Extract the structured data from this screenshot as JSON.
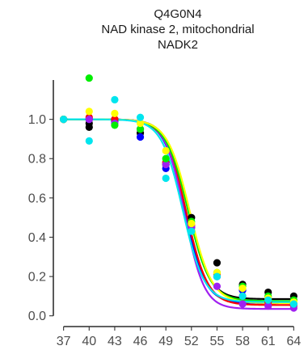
{
  "chart_data": {
    "type": "scatter",
    "title_lines": [
      "Q4G0N4",
      "NAD kinase 2, mitochondrial",
      "NADK2"
    ],
    "xlabel": "",
    "ylabel": "",
    "x_ticks": [
      37,
      40,
      43,
      46,
      49,
      52,
      55,
      58,
      61,
      64
    ],
    "y_ticks": [
      0.0,
      0.2,
      0.4,
      0.6,
      0.8,
      1.0
    ],
    "y_tick_labels": [
      "0.0",
      "0.2",
      "0.4",
      "0.6",
      "0.8",
      "1.0"
    ],
    "xlim": [
      35.8,
      65.2
    ],
    "ylim": [
      -0.03,
      1.27
    ],
    "grid": false,
    "legend": "none",
    "series": [
      {
        "color": "#000000",
        "x": [
          37,
          40,
          40,
          43,
          46,
          49,
          52,
          55,
          58,
          61,
          64
        ],
        "y": [
          1.0,
          0.96,
          0.98,
          1.0,
          0.93,
          0.77,
          0.5,
          0.27,
          0.16,
          0.12,
          0.1
        ],
        "fit": {
          "top": 1.0,
          "bottom": 0.085,
          "tm": 51.6,
          "slope": 1.25
        }
      },
      {
        "color": "#0000FF",
        "x": [
          37,
          40,
          43,
          46,
          49,
          52,
          55,
          58,
          61,
          64
        ],
        "y": [
          1.0,
          1.0,
          0.99,
          0.91,
          0.75,
          0.45,
          0.2,
          0.13,
          0.09,
          0.06
        ],
        "fit": {
          "top": 1.0,
          "bottom": 0.065,
          "tm": 51.2,
          "slope": 1.2
        }
      },
      {
        "color": "#FF0000",
        "x": [
          37,
          40,
          43,
          46,
          49,
          52,
          55,
          58,
          61,
          64
        ],
        "y": [
          1.0,
          1.01,
          1.0,
          0.95,
          0.78,
          0.46,
          0.21,
          0.1,
          0.07,
          0.05
        ],
        "fit": {
          "top": 1.0,
          "bottom": 0.055,
          "tm": 51.4,
          "slope": 1.25
        }
      },
      {
        "color": "#A020F0",
        "x": [
          37,
          40,
          43,
          46,
          49,
          52,
          55,
          58,
          61,
          64
        ],
        "y": [
          1.0,
          1.0,
          0.98,
          0.95,
          0.77,
          0.45,
          0.15,
          0.06,
          0.05,
          0.04
        ],
        "fit": {
          "top": 1.0,
          "bottom": 0.035,
          "tm": 51.2,
          "slope": 1.15
        }
      },
      {
        "color": "#00EE00",
        "x": [
          37,
          40,
          43,
          46,
          49,
          52,
          55,
          58,
          61,
          64
        ],
        "y": [
          1.0,
          1.21,
          0.97,
          0.95,
          0.8,
          0.48,
          0.22,
          0.15,
          0.1,
          0.08
        ],
        "fit": {
          "top": 1.0,
          "bottom": 0.075,
          "tm": 51.6,
          "slope": 1.3
        }
      },
      {
        "color": "#FFFF00",
        "x": [
          37,
          40,
          43,
          46,
          49,
          52,
          55,
          58,
          61,
          64
        ],
        "y": [
          1.0,
          1.04,
          1.03,
          0.98,
          0.84,
          0.47,
          0.22,
          0.14,
          0.09,
          0.07
        ],
        "fit": {
          "top": 1.0,
          "bottom": 0.065,
          "tm": 51.8,
          "slope": 1.3
        }
      },
      {
        "color": "#00E5EE",
        "x": [
          37,
          40,
          43,
          46,
          49,
          52,
          55,
          58,
          61,
          64
        ],
        "y": [
          1.0,
          0.89,
          1.1,
          1.01,
          0.7,
          0.43,
          0.2,
          0.1,
          0.08,
          0.06
        ],
        "fit": {
          "top": 1.0,
          "bottom": 0.07,
          "tm": 51.0,
          "slope": 1.25
        }
      }
    ]
  }
}
